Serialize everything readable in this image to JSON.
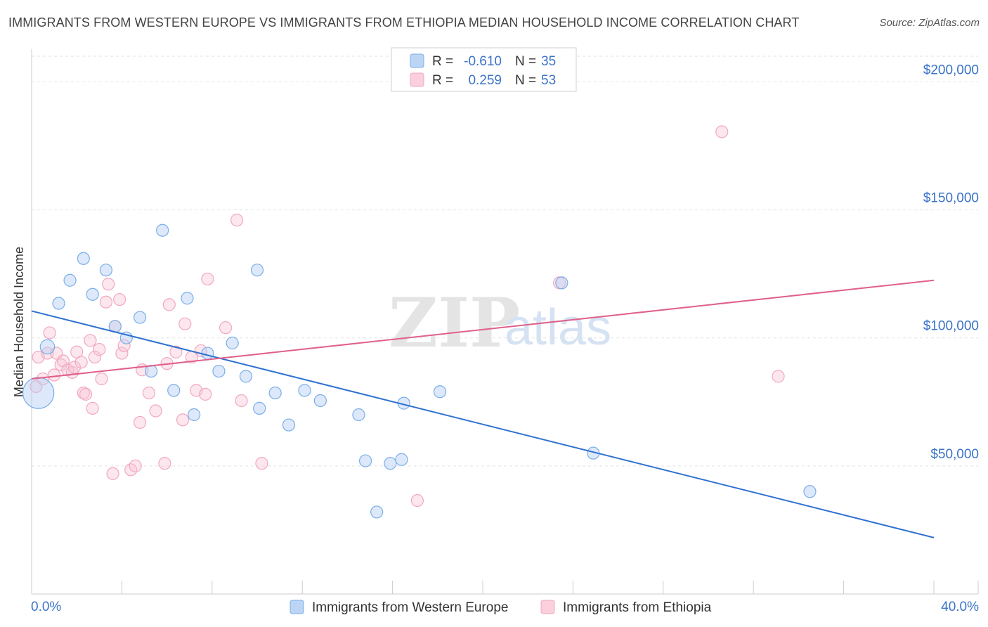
{
  "title": "IMMIGRANTS FROM WESTERN EUROPE VS IMMIGRANTS FROM ETHIOPIA MEDIAN HOUSEHOLD INCOME CORRELATION CHART",
  "source": "Source: ZipAtlas.com",
  "watermark": {
    "zip": "ZIP",
    "atlas": "atlas"
  },
  "chart_data": {
    "type": "scatter",
    "xlabel": "",
    "ylabel": "Median Household Income",
    "xlim": [
      0,
      40
    ],
    "ylim": [
      0,
      210000
    ],
    "x_tick_labels": {
      "left": "0.0%",
      "right": "40.0%"
    },
    "y_ticks": [
      {
        "value": 50000,
        "label": "$50,000"
      },
      {
        "value": 100000,
        "label": "$100,000"
      },
      {
        "value": 150000,
        "label": "$150,000"
      },
      {
        "value": 200000,
        "label": "$200,000"
      }
    ],
    "legend": [
      {
        "r_label": "R =",
        "r_value": "-0.610",
        "n_label": "N =",
        "n_value": "35"
      },
      {
        "r_label": "R =",
        "r_value": "0.259",
        "n_label": "N =",
        "n_value": "53"
      }
    ],
    "series": [
      {
        "name": "Immigrants from Western Europe",
        "color": "#7aaee8",
        "line_color": "#2f72d0",
        "trend": {
          "x0": 0,
          "y0": 110500,
          "x1": 40,
          "y1": 22000
        },
        "points": [
          [
            0.3,
            78500,
            2.6
          ],
          [
            0.7,
            96500,
            1.2
          ],
          [
            1.2,
            113500,
            1
          ],
          [
            1.7,
            122500,
            1
          ],
          [
            2.3,
            131000,
            1
          ],
          [
            2.7,
            117000,
            1
          ],
          [
            3.3,
            126500,
            1
          ],
          [
            3.7,
            104500,
            1
          ],
          [
            4.2,
            100000,
            1
          ],
          [
            4.8,
            108000,
            1
          ],
          [
            5.3,
            87000,
            1
          ],
          [
            5.8,
            142000,
            1
          ],
          [
            6.3,
            79500,
            1
          ],
          [
            6.9,
            115500,
            1
          ],
          [
            7.2,
            70000,
            1
          ],
          [
            7.8,
            94000,
            1
          ],
          [
            8.3,
            87000,
            1
          ],
          [
            8.9,
            98000,
            1
          ],
          [
            9.5,
            85000,
            1
          ],
          [
            10.0,
            126500,
            1
          ],
          [
            10.1,
            72500,
            1
          ],
          [
            10.8,
            78500,
            1
          ],
          [
            11.4,
            66000,
            1
          ],
          [
            12.1,
            79500,
            1
          ],
          [
            12.8,
            75500,
            1
          ],
          [
            14.5,
            70000,
            1
          ],
          [
            14.8,
            52000,
            1
          ],
          [
            15.3,
            32000,
            1
          ],
          [
            15.9,
            51000,
            1
          ],
          [
            16.4,
            52500,
            1
          ],
          [
            16.5,
            74500,
            1
          ],
          [
            18.1,
            79000,
            1
          ],
          [
            23.5,
            121500,
            1
          ],
          [
            24.9,
            55000,
            1
          ],
          [
            34.5,
            40000,
            1
          ]
        ]
      },
      {
        "name": "Immigrants from Ethiopia",
        "color": "#f2a8bf",
        "line_color": "#e0608a",
        "trend": {
          "x0": 0,
          "y0": 84000,
          "x1": 40,
          "y1": 122500
        },
        "points": [
          [
            0.2,
            81000,
            1
          ],
          [
            0.3,
            92500,
            1
          ],
          [
            0.5,
            84000,
            1
          ],
          [
            0.7,
            94000,
            1
          ],
          [
            0.8,
            102000,
            1
          ],
          [
            1.0,
            85500,
            1
          ],
          [
            1.1,
            94000,
            1
          ],
          [
            1.3,
            89500,
            1
          ],
          [
            1.4,
            91000,
            1
          ],
          [
            1.6,
            87500,
            1
          ],
          [
            1.8,
            86500,
            1
          ],
          [
            1.9,
            88500,
            1
          ],
          [
            2.0,
            94500,
            1
          ],
          [
            2.2,
            90500,
            1
          ],
          [
            2.3,
            78500,
            1
          ],
          [
            2.4,
            78000,
            1
          ],
          [
            2.6,
            99000,
            1
          ],
          [
            2.7,
            72500,
            1
          ],
          [
            2.8,
            92500,
            1
          ],
          [
            3.0,
            95500,
            1
          ],
          [
            3.1,
            84000,
            1
          ],
          [
            3.3,
            114000,
            1
          ],
          [
            3.4,
            121000,
            1
          ],
          [
            3.6,
            47000,
            1
          ],
          [
            3.7,
            104500,
            1
          ],
          [
            3.9,
            115000,
            1
          ],
          [
            4.0,
            94000,
            1
          ],
          [
            4.1,
            97000,
            1
          ],
          [
            4.4,
            48500,
            1
          ],
          [
            4.6,
            50000,
            1
          ],
          [
            4.8,
            67000,
            1
          ],
          [
            4.9,
            87500,
            1
          ],
          [
            5.2,
            78500,
            1
          ],
          [
            5.5,
            71500,
            1
          ],
          [
            5.9,
            51000,
            1
          ],
          [
            6.0,
            90000,
            1
          ],
          [
            6.1,
            113000,
            1
          ],
          [
            6.4,
            94500,
            1
          ],
          [
            6.7,
            68000,
            1
          ],
          [
            6.8,
            105500,
            1
          ],
          [
            7.1,
            92500,
            1
          ],
          [
            7.3,
            79500,
            1
          ],
          [
            7.5,
            95000,
            1
          ],
          [
            7.7,
            78000,
            1
          ],
          [
            7.8,
            123000,
            1
          ],
          [
            8.6,
            104000,
            1
          ],
          [
            9.1,
            146000,
            1
          ],
          [
            9.3,
            75500,
            1
          ],
          [
            10.2,
            51000,
            1
          ],
          [
            17.1,
            36500,
            1
          ],
          [
            23.4,
            121500,
            1
          ],
          [
            30.6,
            180500,
            1
          ],
          [
            33.1,
            85000,
            1
          ]
        ]
      }
    ]
  }
}
